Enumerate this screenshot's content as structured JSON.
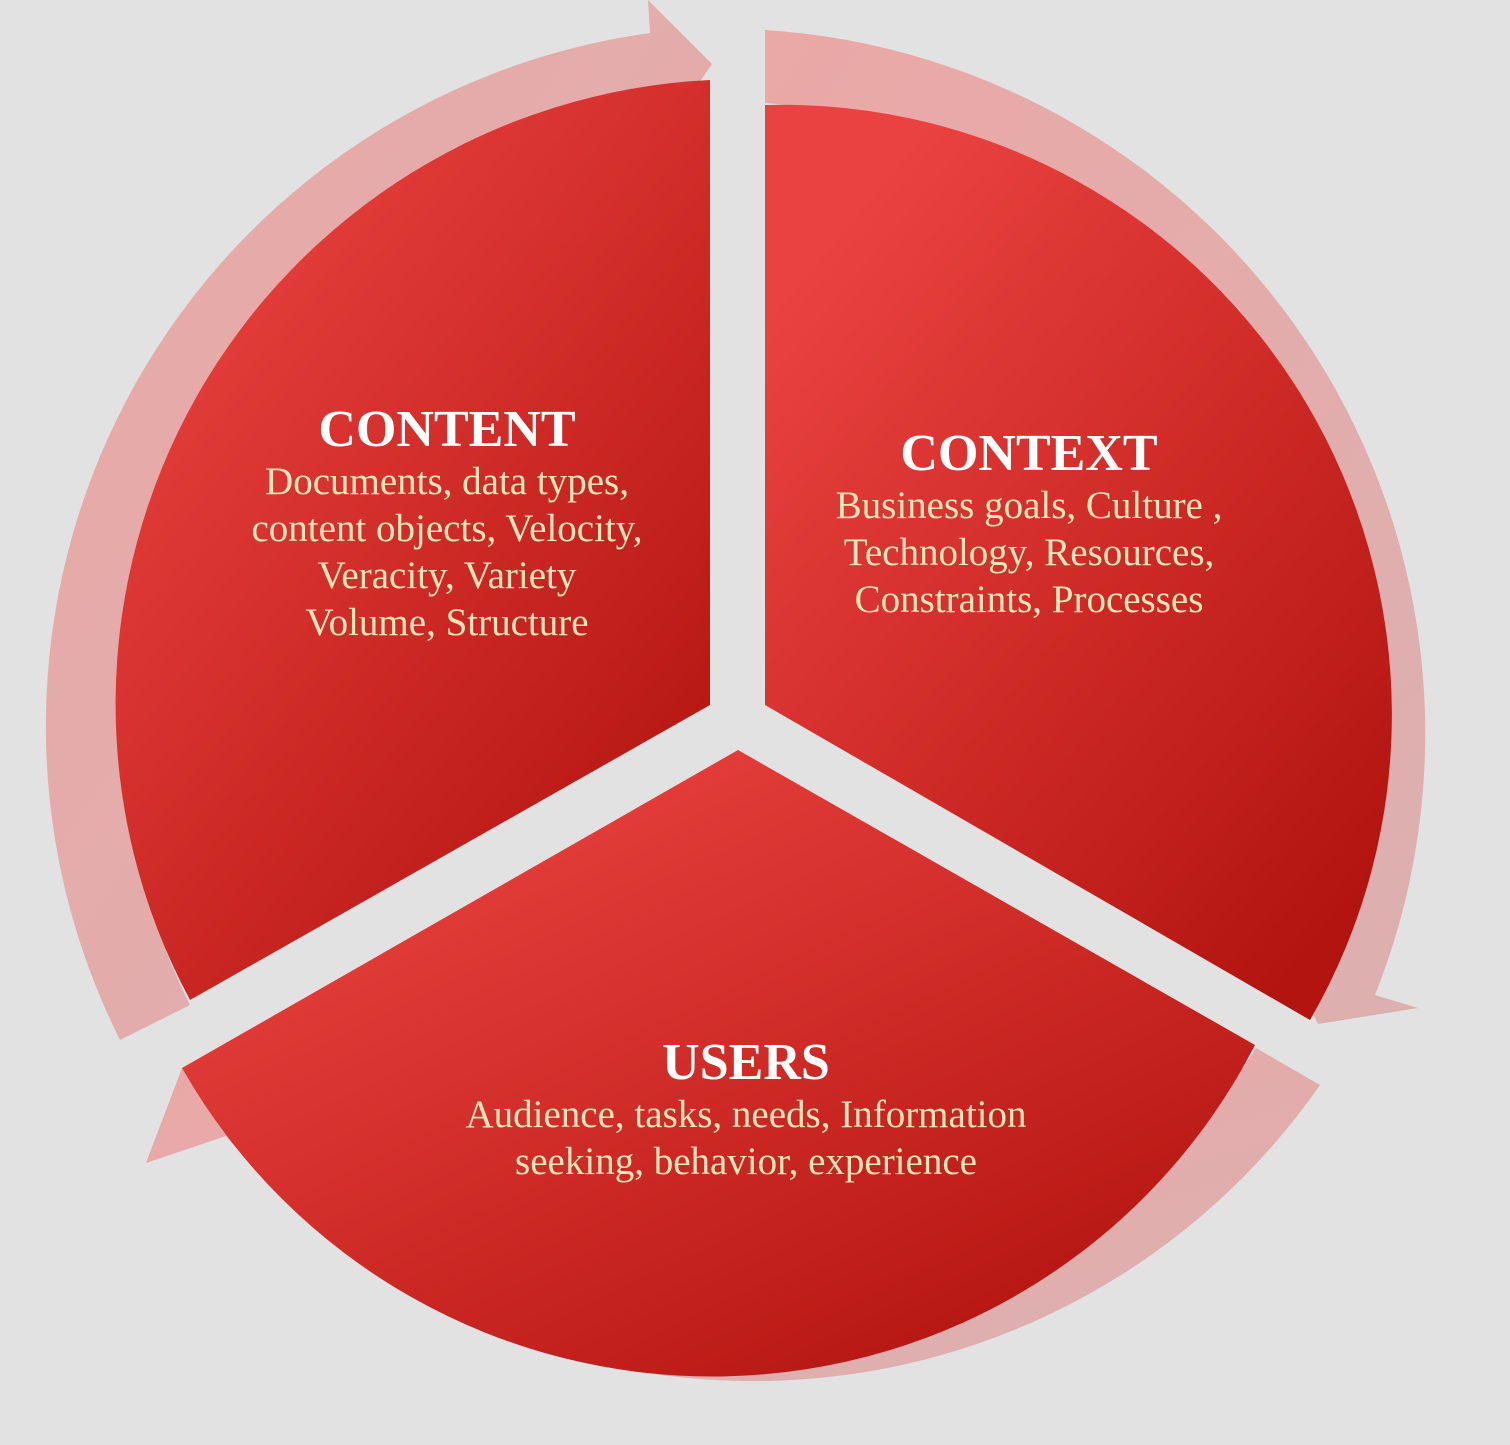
{
  "colors": {
    "background": "#e2e2e2",
    "segment_light": "#ea4240",
    "segment_dark": "#b3140f",
    "arrow_ring": "#e4a3a3",
    "title_text": "#ffffff",
    "body_text": "#f2e6b8"
  },
  "segments": [
    {
      "id": "content",
      "title": "CONTENT",
      "lines": [
        "Documents, data types,",
        "content objects, Velocity,",
        "Veracity, Variety",
        "Volume, Structure"
      ]
    },
    {
      "id": "context",
      "title": "CONTEXT",
      "lines": [
        "Business goals, Culture ,",
        " Technology, Resources,",
        "Constraints, Processes"
      ]
    },
    {
      "id": "users",
      "title": "USERS",
      "lines": [
        "Audience, tasks, needs,  Information",
        "seeking, behavior, experience"
      ]
    }
  ]
}
